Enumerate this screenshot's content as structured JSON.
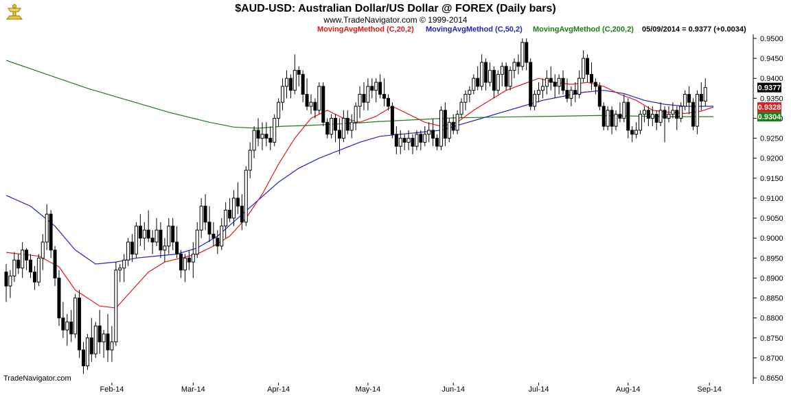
{
  "colors": {
    "background": "#ffffff",
    "candle": "#000000",
    "ma20": "#e0191a",
    "ma50": "#1f23c4",
    "ma200": "#1b7d16",
    "logo": "#e8c23a"
  },
  "header": {
    "title": "$AUD-USD:  Australian Dollar/US Dollar @ FOREX  (Daily bars)",
    "subtitle": "www.TradeNavigator.com © 1999-2014",
    "legend_ma20": "MovingAvgMethod (C,20,2)",
    "legend_ma50": "MovingAvgMethod (C,50,2)",
    "legend_ma200": "MovingAvgMethod (C,200,2)",
    "last_quote": "05/09/2014 = 0.9377 (+0.0034)"
  },
  "footer": {
    "brand": "TradeNavigator.com"
  },
  "logo": {
    "icon": "trade-navigator-gold-trophy-icon"
  },
  "chart_data": {
    "type": "candlestick",
    "title": "$AUD-USD:  Australian Dollar/US Dollar @ FOREX  (Daily bars)",
    "y_axis": {
      "range": [
        0.865,
        0.95
      ],
      "ticks": [
        "0.9500",
        "0.9450",
        "0.9400",
        "0.9350",
        "0.9300",
        "0.9250",
        "0.9200",
        "0.9150",
        "0.9100",
        "0.9050",
        "0.9000",
        "0.8950",
        "0.8900",
        "0.8850",
        "0.8800",
        "0.8750",
        "0.8700",
        "0.8650"
      ],
      "side": "right"
    },
    "x_axis": {
      "labels": [
        "Feb-14",
        "Mar-14",
        "Apr-14",
        "May-14",
        "Jun-14",
        "Jul-14",
        "Aug-14",
        "Sep-14"
      ],
      "label_index": [
        26,
        46,
        67,
        89,
        110,
        131,
        153,
        173
      ]
    },
    "grid": false,
    "badges": [
      {
        "name": "last-close",
        "label": "0.9377",
        "value": 0.9377,
        "bg": "#000000",
        "fg": "#ffffff"
      },
      {
        "name": "ma20-value",
        "label": "0.9328",
        "value": 0.9328,
        "bg": "#e0191a",
        "fg": "#ffffff"
      },
      {
        "name": "ma200-value",
        "label": "0.9304",
        "value": 0.9304,
        "bg": "#1b7d16",
        "fg": "#ffffff"
      }
    ],
    "candles": [
      [
        0.8915,
        0.8935,
        0.884,
        0.888
      ],
      [
        0.888,
        0.892,
        0.885,
        0.8905
      ],
      [
        0.8905,
        0.8965,
        0.889,
        0.8945
      ],
      [
        0.8945,
        0.896,
        0.891,
        0.8925
      ],
      [
        0.8925,
        0.899,
        0.89,
        0.897
      ],
      [
        0.897,
        0.8975,
        0.892,
        0.8945
      ],
      [
        0.8945,
        0.896,
        0.89,
        0.8915
      ],
      [
        0.8915,
        0.893,
        0.887,
        0.889
      ],
      [
        0.889,
        0.896,
        0.888,
        0.895
      ],
      [
        0.895,
        0.901,
        0.892,
        0.899
      ],
      [
        0.899,
        0.9085,
        0.897,
        0.906
      ],
      [
        0.906,
        0.907,
        0.895,
        0.897
      ],
      [
        0.897,
        0.898,
        0.888,
        0.89
      ],
      [
        0.89,
        0.892,
        0.878,
        0.88
      ],
      [
        0.88,
        0.884,
        0.875,
        0.877
      ],
      [
        0.877,
        0.881,
        0.873,
        0.879
      ],
      [
        0.879,
        0.882,
        0.874,
        0.876
      ],
      [
        0.876,
        0.886,
        0.875,
        0.885
      ],
      [
        0.885,
        0.887,
        0.87,
        0.872
      ],
      [
        0.872,
        0.874,
        0.866,
        0.868
      ],
      [
        0.868,
        0.876,
        0.867,
        0.875
      ],
      [
        0.875,
        0.88,
        0.869,
        0.871
      ],
      [
        0.871,
        0.879,
        0.87,
        0.878
      ],
      [
        0.878,
        0.882,
        0.871,
        0.874
      ],
      [
        0.874,
        0.877,
        0.87,
        0.876
      ],
      [
        0.876,
        0.881,
        0.869,
        0.872
      ],
      [
        0.872,
        0.878,
        0.869,
        0.874
      ],
      [
        0.874,
        0.894,
        0.873,
        0.892
      ],
      [
        0.892,
        0.8935,
        0.889,
        0.8925
      ],
      [
        0.8925,
        0.896,
        0.889,
        0.8945
      ],
      [
        0.8945,
        0.9,
        0.893,
        0.899
      ],
      [
        0.899,
        0.901,
        0.894,
        0.896
      ],
      [
        0.896,
        0.904,
        0.895,
        0.903
      ],
      [
        0.903,
        0.906,
        0.898,
        0.9
      ],
      [
        0.9,
        0.904,
        0.897,
        0.902
      ],
      [
        0.902,
        0.907,
        0.899,
        0.9
      ],
      [
        0.9,
        0.902,
        0.896,
        0.899
      ],
      [
        0.899,
        0.905,
        0.898,
        0.902
      ],
      [
        0.902,
        0.904,
        0.895,
        0.897
      ],
      [
        0.897,
        0.9,
        0.894,
        0.898
      ],
      [
        0.898,
        0.905,
        0.896,
        0.903
      ],
      [
        0.903,
        0.905,
        0.897,
        0.899
      ],
      [
        0.899,
        0.903,
        0.895,
        0.896
      ],
      [
        0.896,
        0.897,
        0.89,
        0.892
      ],
      [
        0.892,
        0.896,
        0.889,
        0.895
      ],
      [
        0.895,
        0.897,
        0.892,
        0.894
      ],
      [
        0.894,
        0.899,
        0.89,
        0.896
      ],
      [
        0.896,
        0.904,
        0.895,
        0.902
      ],
      [
        0.902,
        0.91,
        0.9,
        0.908
      ],
      [
        0.908,
        0.911,
        0.902,
        0.904
      ],
      [
        0.904,
        0.908,
        0.899,
        0.901
      ],
      [
        0.901,
        0.904,
        0.898,
        0.9
      ],
      [
        0.9,
        0.902,
        0.896,
        0.898
      ],
      [
        0.898,
        0.905,
        0.897,
        0.903
      ],
      [
        0.903,
        0.909,
        0.9,
        0.907
      ],
      [
        0.907,
        0.91,
        0.904,
        0.905
      ],
      [
        0.905,
        0.912,
        0.903,
        0.91
      ],
      [
        0.91,
        0.914,
        0.906,
        0.908
      ],
      [
        0.908,
        0.911,
        0.902,
        0.904
      ],
      [
        0.904,
        0.918,
        0.903,
        0.917
      ],
      [
        0.917,
        0.924,
        0.915,
        0.922
      ],
      [
        0.922,
        0.928,
        0.92,
        0.927
      ],
      [
        0.927,
        0.93,
        0.923,
        0.925
      ],
      [
        0.925,
        0.929,
        0.922,
        0.926
      ],
      [
        0.926,
        0.929,
        0.923,
        0.925
      ],
      [
        0.925,
        0.928,
        0.922,
        0.924
      ],
      [
        0.924,
        0.931,
        0.923,
        0.93
      ],
      [
        0.93,
        0.935,
        0.928,
        0.934
      ],
      [
        0.934,
        0.94,
        0.932,
        0.938
      ],
      [
        0.938,
        0.942,
        0.935,
        0.94
      ],
      [
        0.94,
        0.941,
        0.935,
        0.937
      ],
      [
        0.937,
        0.946,
        0.936,
        0.942
      ],
      [
        0.942,
        0.943,
        0.938,
        0.941
      ],
      [
        0.941,
        0.942,
        0.934,
        0.936
      ],
      [
        0.936,
        0.94,
        0.932,
        0.933
      ],
      [
        0.933,
        0.936,
        0.931,
        0.934
      ],
      [
        0.934,
        0.935,
        0.93,
        0.932
      ],
      [
        0.932,
        0.939,
        0.931,
        0.938
      ],
      [
        0.938,
        0.939,
        0.928,
        0.929
      ],
      [
        0.929,
        0.93,
        0.925,
        0.926
      ],
      [
        0.926,
        0.931,
        0.925,
        0.93
      ],
      [
        0.93,
        0.931,
        0.924,
        0.927
      ],
      [
        0.927,
        0.93,
        0.921,
        0.925
      ],
      [
        0.925,
        0.932,
        0.924,
        0.93
      ],
      [
        0.93,
        0.932,
        0.926,
        0.927
      ],
      [
        0.927,
        0.931,
        0.925,
        0.929
      ],
      [
        0.929,
        0.934,
        0.927,
        0.933
      ],
      [
        0.933,
        0.938,
        0.93,
        0.936
      ],
      [
        0.936,
        0.939,
        0.932,
        0.934
      ],
      [
        0.934,
        0.94,
        0.932,
        0.938
      ],
      [
        0.938,
        0.94,
        0.935,
        0.937
      ],
      [
        0.937,
        0.94,
        0.934,
        0.939
      ],
      [
        0.939,
        0.941,
        0.935,
        0.936
      ],
      [
        0.936,
        0.94,
        0.933,
        0.935
      ],
      [
        0.935,
        0.936,
        0.932,
        0.933
      ],
      [
        0.933,
        0.934,
        0.925,
        0.926
      ],
      [
        0.926,
        0.928,
        0.921,
        0.923
      ],
      [
        0.923,
        0.927,
        0.921,
        0.925
      ],
      [
        0.925,
        0.926,
        0.922,
        0.924
      ],
      [
        0.924,
        0.927,
        0.922,
        0.925
      ],
      [
        0.925,
        0.926,
        0.921,
        0.923
      ],
      [
        0.923,
        0.927,
        0.922,
        0.926
      ],
      [
        0.926,
        0.927,
        0.922,
        0.924
      ],
      [
        0.924,
        0.928,
        0.923,
        0.926
      ],
      [
        0.926,
        0.929,
        0.924,
        0.927
      ],
      [
        0.927,
        0.93,
        0.923,
        0.925
      ],
      [
        0.925,
        0.926,
        0.922,
        0.923
      ],
      [
        0.923,
        0.933,
        0.922,
        0.932
      ],
      [
        0.932,
        0.934,
        0.923,
        0.925
      ],
      [
        0.925,
        0.93,
        0.924,
        0.929
      ],
      [
        0.929,
        0.931,
        0.926,
        0.927
      ],
      [
        0.927,
        0.932,
        0.926,
        0.931
      ],
      [
        0.931,
        0.935,
        0.93,
        0.934
      ],
      [
        0.934,
        0.937,
        0.932,
        0.936
      ],
      [
        0.936,
        0.938,
        0.934,
        0.937
      ],
      [
        0.937,
        0.941,
        0.936,
        0.94
      ],
      [
        0.94,
        0.943,
        0.937,
        0.938
      ],
      [
        0.938,
        0.946,
        0.937,
        0.944
      ],
      [
        0.944,
        0.945,
        0.937,
        0.939
      ],
      [
        0.939,
        0.944,
        0.938,
        0.942
      ],
      [
        0.942,
        0.943,
        0.935,
        0.937
      ],
      [
        0.937,
        0.942,
        0.936,
        0.941
      ],
      [
        0.941,
        0.944,
        0.938,
        0.943
      ],
      [
        0.943,
        0.944,
        0.937,
        0.938
      ],
      [
        0.938,
        0.943,
        0.937,
        0.942
      ],
      [
        0.942,
        0.945,
        0.94,
        0.944
      ],
      [
        0.944,
        0.946,
        0.941,
        0.943
      ],
      [
        0.943,
        0.95,
        0.942,
        0.949
      ],
      [
        0.949,
        0.95,
        0.942,
        0.944
      ],
      [
        0.944,
        0.945,
        0.932,
        0.933
      ],
      [
        0.933,
        0.937,
        0.932,
        0.936
      ],
      [
        0.936,
        0.939,
        0.934,
        0.937
      ],
      [
        0.937,
        0.94,
        0.935,
        0.938
      ],
      [
        0.938,
        0.942,
        0.936,
        0.94
      ],
      [
        0.94,
        0.943,
        0.937,
        0.939
      ],
      [
        0.939,
        0.941,
        0.935,
        0.938
      ],
      [
        0.938,
        0.941,
        0.936,
        0.94
      ],
      [
        0.94,
        0.942,
        0.936,
        0.937
      ],
      [
        0.937,
        0.94,
        0.934,
        0.935
      ],
      [
        0.935,
        0.938,
        0.933,
        0.937
      ],
      [
        0.937,
        0.939,
        0.934,
        0.936
      ],
      [
        0.936,
        0.942,
        0.935,
        0.94
      ],
      [
        0.94,
        0.947,
        0.939,
        0.945
      ],
      [
        0.945,
        0.946,
        0.939,
        0.941
      ],
      [
        0.941,
        0.944,
        0.937,
        0.939
      ],
      [
        0.939,
        0.94,
        0.936,
        0.938
      ],
      [
        0.938,
        0.939,
        0.932,
        0.933
      ],
      [
        0.933,
        0.934,
        0.927,
        0.928
      ],
      [
        0.928,
        0.933,
        0.927,
        0.932
      ],
      [
        0.932,
        0.933,
        0.926,
        0.928
      ],
      [
        0.928,
        0.932,
        0.927,
        0.931
      ],
      [
        0.931,
        0.934,
        0.929,
        0.93
      ],
      [
        0.93,
        0.936,
        0.929,
        0.934
      ],
      [
        0.934,
        0.935,
        0.925,
        0.927
      ],
      [
        0.927,
        0.928,
        0.924,
        0.926
      ],
      [
        0.926,
        0.929,
        0.925,
        0.927
      ],
      [
        0.927,
        0.932,
        0.926,
        0.931
      ],
      [
        0.931,
        0.933,
        0.929,
        0.932
      ],
      [
        0.932,
        0.933,
        0.928,
        0.93
      ],
      [
        0.93,
        0.933,
        0.928,
        0.931
      ],
      [
        0.931,
        0.932,
        0.927,
        0.929
      ],
      [
        0.929,
        0.934,
        0.928,
        0.932
      ],
      [
        0.932,
        0.933,
        0.924,
        0.93
      ],
      [
        0.93,
        0.933,
        0.929,
        0.931
      ],
      [
        0.931,
        0.934,
        0.93,
        0.932
      ],
      [
        0.932,
        0.933,
        0.927,
        0.93
      ],
      [
        0.93,
        0.934,
        0.929,
        0.933
      ],
      [
        0.933,
        0.937,
        0.932,
        0.936
      ],
      [
        0.936,
        0.938,
        0.931,
        0.934
      ],
      [
        0.934,
        0.935,
        0.927,
        0.928
      ],
      [
        0.928,
        0.937,
        0.926,
        0.936
      ],
      [
        0.936,
        0.939,
        0.932,
        0.9343
      ],
      [
        0.9343,
        0.94,
        0.933,
        0.9377
      ]
    ],
    "ma20": [
      [
        0,
        0.8964
      ],
      [
        8,
        0.8955
      ],
      [
        13,
        0.8928
      ],
      [
        17,
        0.887
      ],
      [
        23,
        0.883
      ],
      [
        27,
        0.8825
      ],
      [
        31,
        0.887
      ],
      [
        35,
        0.8915
      ],
      [
        39,
        0.894
      ],
      [
        43,
        0.895
      ],
      [
        47,
        0.896
      ],
      [
        51,
        0.898
      ],
      [
        55,
        0.9005
      ],
      [
        59,
        0.905
      ],
      [
        63,
        0.911
      ],
      [
        67,
        0.9185
      ],
      [
        71,
        0.925
      ],
      [
        75,
        0.93
      ],
      [
        79,
        0.932
      ],
      [
        83,
        0.93
      ],
      [
        87,
        0.929
      ],
      [
        91,
        0.9305
      ],
      [
        95,
        0.933
      ],
      [
        99,
        0.931
      ],
      [
        103,
        0.929
      ],
      [
        107,
        0.928
      ],
      [
        111,
        0.929
      ],
      [
        115,
        0.932
      ],
      [
        119,
        0.9345
      ],
      [
        123,
        0.937
      ],
      [
        127,
        0.9385
      ],
      [
        131,
        0.94
      ],
      [
        135,
        0.939
      ],
      [
        139,
        0.9385
      ],
      [
        143,
        0.939
      ],
      [
        147,
        0.938
      ],
      [
        151,
        0.936
      ],
      [
        155,
        0.9345
      ],
      [
        159,
        0.932
      ],
      [
        163,
        0.9315
      ],
      [
        167,
        0.9312
      ],
      [
        171,
        0.9318
      ],
      [
        174,
        0.9328
      ]
    ],
    "ma50": [
      [
        0,
        0.9107
      ],
      [
        6,
        0.908
      ],
      [
        12,
        0.903
      ],
      [
        17,
        0.897
      ],
      [
        22,
        0.8935
      ],
      [
        27,
        0.894
      ],
      [
        32,
        0.895
      ],
      [
        37,
        0.8955
      ],
      [
        42,
        0.896
      ],
      [
        47,
        0.8975
      ],
      [
        52,
        0.9005
      ],
      [
        57,
        0.905
      ],
      [
        62,
        0.9095
      ],
      [
        67,
        0.914
      ],
      [
        72,
        0.9175
      ],
      [
        77,
        0.92
      ],
      [
        82,
        0.922
      ],
      [
        87,
        0.924
      ],
      [
        92,
        0.9255
      ],
      [
        97,
        0.926
      ],
      [
        102,
        0.9265
      ],
      [
        107,
        0.927
      ],
      [
        112,
        0.9285
      ],
      [
        117,
        0.93
      ],
      [
        122,
        0.9315
      ],
      [
        127,
        0.933
      ],
      [
        132,
        0.9345
      ],
      [
        137,
        0.9355
      ],
      [
        142,
        0.9365
      ],
      [
        147,
        0.937
      ],
      [
        152,
        0.9362
      ],
      [
        157,
        0.9345
      ],
      [
        162,
        0.9335
      ],
      [
        167,
        0.933
      ],
      [
        172,
        0.933
      ],
      [
        174,
        0.933
      ]
    ],
    "ma200": [
      [
        0,
        0.9445
      ],
      [
        10,
        0.941
      ],
      [
        20,
        0.9375
      ],
      [
        30,
        0.9345
      ],
      [
        40,
        0.9315
      ],
      [
        50,
        0.929
      ],
      [
        56,
        0.9278
      ],
      [
        62,
        0.9275
      ],
      [
        68,
        0.928
      ],
      [
        74,
        0.9282
      ],
      [
        80,
        0.9285
      ],
      [
        86,
        0.9288
      ],
      [
        92,
        0.9292
      ],
      [
        98,
        0.9295
      ],
      [
        104,
        0.9298
      ],
      [
        110,
        0.9301
      ],
      [
        116,
        0.9302
      ],
      [
        122,
        0.9303
      ],
      [
        128,
        0.9304
      ],
      [
        134,
        0.9305
      ],
      [
        140,
        0.9306
      ],
      [
        146,
        0.9307
      ],
      [
        152,
        0.9306
      ],
      [
        158,
        0.9305
      ],
      [
        164,
        0.9304
      ],
      [
        170,
        0.9304
      ],
      [
        174,
        0.9304
      ]
    ]
  }
}
